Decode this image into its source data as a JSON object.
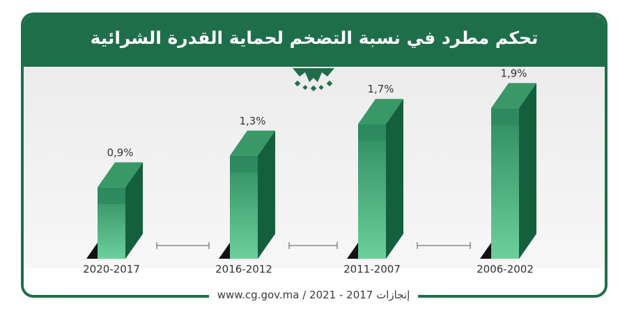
{
  "header": {
    "title": "تحكم مطرد في نسبة التضخم لحماية القدرة الشرائية"
  },
  "footer": {
    "text": "www.cg.gov.ma / 2021 - 2017 إنجازات"
  },
  "colors": {
    "brand": "#1f6e4a",
    "bar_front_top": "#2e8a5e",
    "bar_front_bottom": "#6ccf9c",
    "bar_side": "#14603d",
    "bar_top": "#3a9868"
  },
  "chart_data": {
    "type": "bar",
    "title": "تحكم مطرد في نسبة التضخم لحماية القدرة الشرائية",
    "xlabel": "",
    "ylabel": "",
    "categories": [
      "2020-2017",
      "2016-2012",
      "2011-2007",
      "2006-2002"
    ],
    "values": [
      0.9,
      1.3,
      1.7,
      1.9
    ],
    "labels": [
      "0,9%",
      "1,3%",
      "1,7%",
      "1,9%"
    ],
    "unit": "%",
    "ylim": [
      0,
      2
    ],
    "grid": false,
    "legend": "none"
  }
}
